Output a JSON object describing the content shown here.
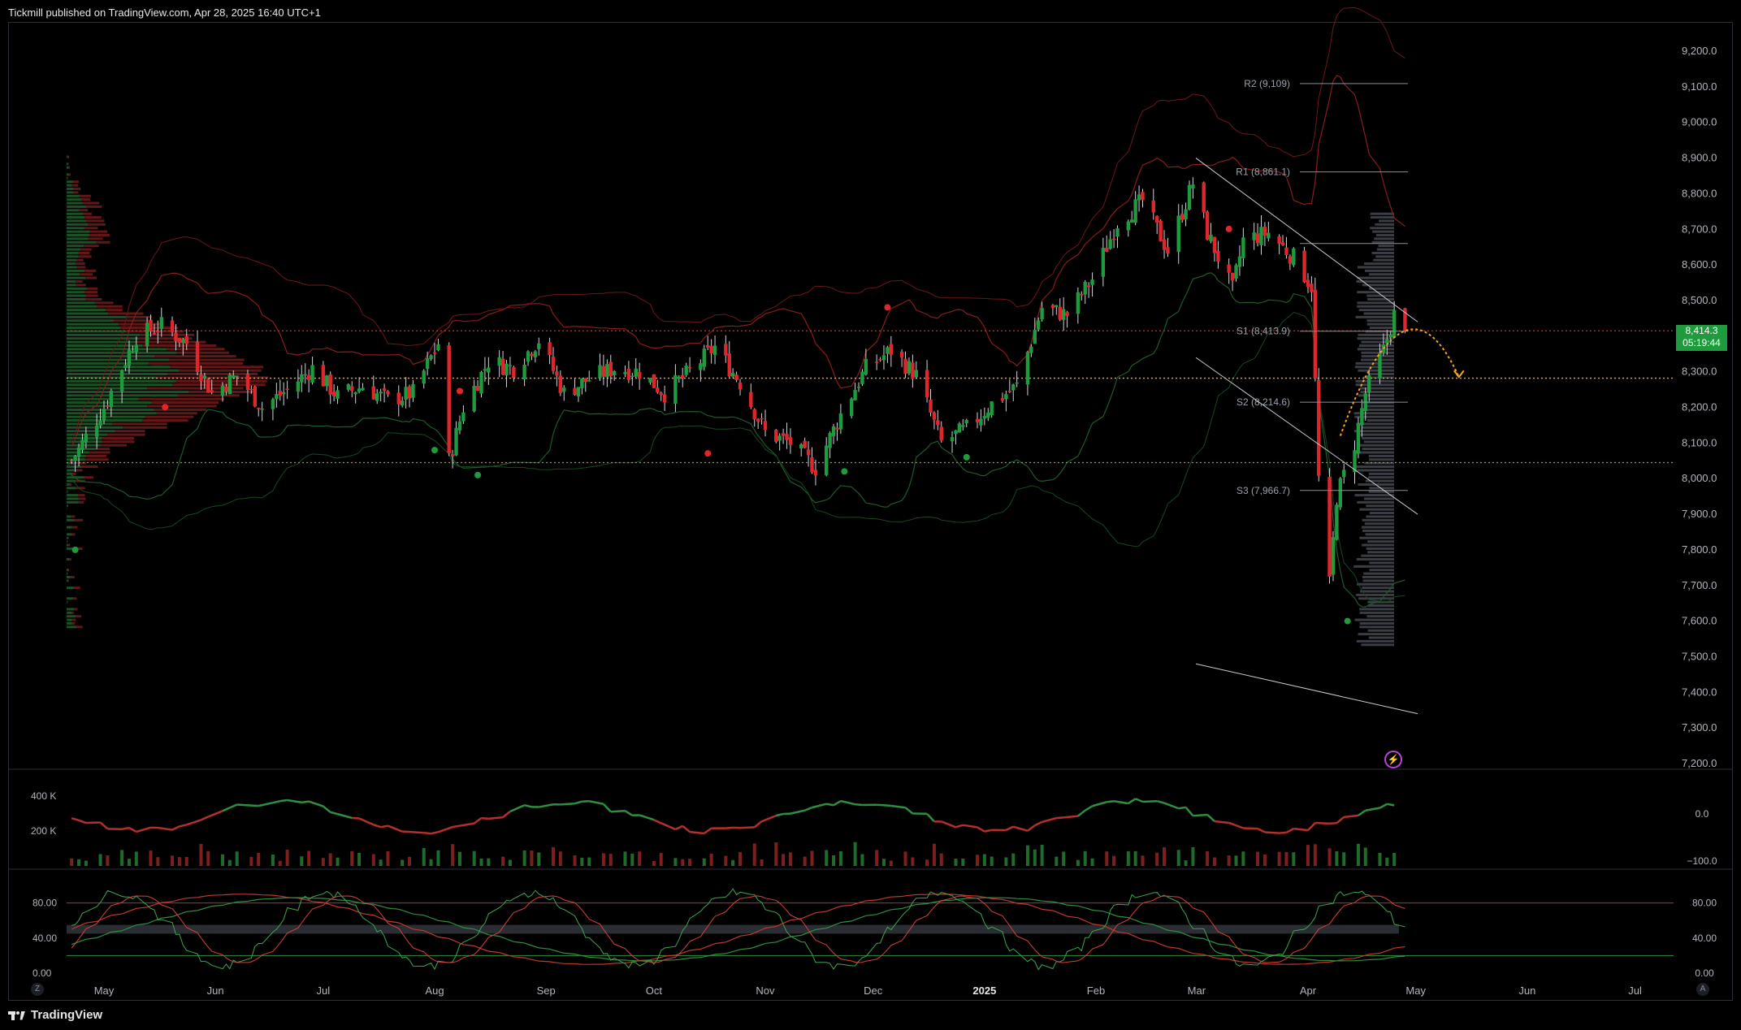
{
  "header": {
    "publisher": "Tickmill published on TradingView.com, Apr 28, 2025 16:40 UTC+1"
  },
  "footer": {
    "brand": "TradingView"
  },
  "last_price": {
    "value": "8,414.3",
    "countdown": "05:19:44"
  },
  "corner_left": "Z",
  "corner_right": "A",
  "colors": {
    "up": "#1e9b3c",
    "down": "#e0262b",
    "background": "#000000",
    "grid": "#2a2e39",
    "accent_orange": "#f5a623"
  },
  "chart_data": [
    {
      "type": "candlestick",
      "panel": "price",
      "y_ticks": [
        "9,200.0",
        "9,100.0",
        "9,000.0",
        "8,900.0",
        "8,800.0",
        "8,700.0",
        "8,600.0",
        "8,500.0",
        "8,400.0",
        "8,300.0",
        "8,200.0",
        "8,100.0",
        "8,000.0",
        "7,900.0",
        "7,800.0",
        "7,700.0",
        "7,600.0",
        "7,500.0",
        "7,400.0",
        "7,300.0",
        "7,200.0"
      ],
      "ylim": [
        7200,
        9200
      ],
      "x_ticks": [
        "May",
        "Jun",
        "Jul",
        "Aug",
        "Sep",
        "Oct",
        "Nov",
        "Dec",
        "2025",
        "Feb",
        "Mar",
        "Apr",
        "May",
        "Jun",
        "Jul"
      ],
      "pivot_levels": [
        {
          "label": "R2 (9,109)",
          "value": 9109
        },
        {
          "label": "R1 (8,861.1)",
          "value": 8861.1
        },
        {
          "label": "S1 (8,413.9)",
          "value": 8413.9
        },
        {
          "label": "S2 (8,214.6)",
          "value": 8214.6
        },
        {
          "label": "S3 (7,966.7)",
          "value": 7966.7
        }
      ],
      "horizontal_lines": [
        8415,
        8282,
        8045
      ],
      "last_price": 8414.3,
      "close_path": [
        [
          "2024-04-22",
          8050
        ],
        [
          "2024-05-01",
          8200
        ],
        [
          "2024-05-10",
          8400
        ],
        [
          "2024-05-17",
          8430
        ],
        [
          "2024-05-24",
          8380
        ],
        [
          "2024-05-31",
          8240
        ],
        [
          "2024-06-07",
          8290
        ],
        [
          "2024-06-14",
          8200
        ],
        [
          "2024-06-21",
          8250
        ],
        [
          "2024-06-28",
          8310
        ],
        [
          "2024-07-05",
          8230
        ],
        [
          "2024-07-12",
          8260
        ],
        [
          "2024-07-19",
          8220
        ],
        [
          "2024-07-26",
          8240
        ],
        [
          "2024-08-02",
          8380
        ],
        [
          "2024-08-05",
          8050
        ],
        [
          "2024-08-09",
          8200
        ],
        [
          "2024-08-16",
          8330
        ],
        [
          "2024-08-23",
          8310
        ],
        [
          "2024-08-30",
          8390
        ],
        [
          "2024-09-06",
          8240
        ],
        [
          "2024-09-13",
          8280
        ],
        [
          "2024-09-20",
          8310
        ],
        [
          "2024-09-27",
          8300
        ],
        [
          "2024-10-04",
          8240
        ],
        [
          "2024-10-11",
          8300
        ],
        [
          "2024-10-18",
          8370
        ],
        [
          "2024-10-25",
          8270
        ],
        [
          "2024-11-01",
          8130
        ],
        [
          "2024-11-08",
          8100
        ],
        [
          "2024-11-15",
          8030
        ],
        [
          "2024-11-22",
          8180
        ],
        [
          "2024-11-29",
          8310
        ],
        [
          "2024-12-06",
          8360
        ],
        [
          "2024-12-13",
          8290
        ],
        [
          "2024-12-20",
          8100
        ],
        [
          "2024-12-27",
          8140
        ],
        [
          "2025-01-03",
          8210
        ],
        [
          "2025-01-10",
          8260
        ],
        [
          "2025-01-17",
          8480
        ],
        [
          "2025-01-24",
          8460
        ],
        [
          "2025-01-31",
          8560
        ],
        [
          "2025-02-07",
          8720
        ],
        [
          "2025-02-14",
          8780
        ],
        [
          "2025-02-21",
          8640
        ],
        [
          "2025-02-28",
          8830
        ],
        [
          "2025-03-04",
          8690
        ],
        [
          "2025-03-11",
          8530
        ],
        [
          "2025-03-14",
          8670
        ],
        [
          "2025-03-21",
          8690
        ],
        [
          "2025-03-28",
          8620
        ],
        [
          "2025-04-02",
          8540
        ],
        [
          "2025-04-04",
          8000
        ],
        [
          "2025-04-07",
          7700
        ],
        [
          "2025-04-09",
          7950
        ],
        [
          "2025-04-14",
          8100
        ],
        [
          "2025-04-17",
          8240
        ],
        [
          "2025-04-22",
          8360
        ],
        [
          "2025-04-25",
          8460
        ],
        [
          "2025-04-28",
          8414.3
        ]
      ]
    },
    {
      "type": "bar",
      "panel": "volume",
      "y_ticks_left": [
        "400 K",
        "200 K"
      ],
      "y_ticks_right": [
        "0.0",
        "−100.0"
      ]
    },
    {
      "type": "line",
      "panel": "stochastic",
      "y_ticks": [
        "80.00",
        "40.00",
        "0.00"
      ],
      "ylim": [
        0,
        100
      ],
      "levels": [
        80,
        20
      ]
    }
  ]
}
